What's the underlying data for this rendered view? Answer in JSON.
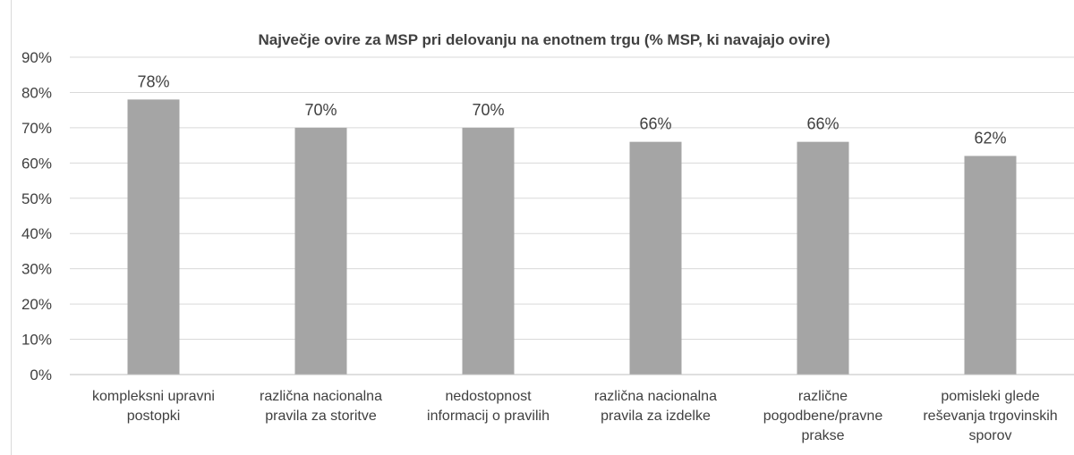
{
  "chart_data": {
    "type": "bar",
    "title": "Največje ovire za MSP pri delovanju na enotnem trgu (% MSP, ki navajajo ovire)",
    "xlabel": "",
    "ylabel": "",
    "ylim": [
      0,
      90
    ],
    "yticks": [
      "0%",
      "10%",
      "20%",
      "30%",
      "40%",
      "50%",
      "60%",
      "70%",
      "80%",
      "90%"
    ],
    "grid": true,
    "legend": "none",
    "bar_color": "#a5a5a5",
    "categories": [
      [
        "kompleksni upravni",
        "postopki"
      ],
      [
        "različna nacionalna",
        "pravila za storitve"
      ],
      [
        "nedostopnost",
        "informacij o pravilih"
      ],
      [
        "različna nacionalna",
        "pravila za izdelke"
      ],
      [
        "različne",
        "pogodbene/pravne",
        "prakse"
      ],
      [
        "pomisleki glede",
        "reševanja trgovinskih",
        "sporov"
      ]
    ],
    "values": [
      78,
      70,
      70,
      66,
      66,
      62
    ],
    "data_labels": [
      "78%",
      "70%",
      "70%",
      "66%",
      "66%",
      "62%"
    ]
  }
}
